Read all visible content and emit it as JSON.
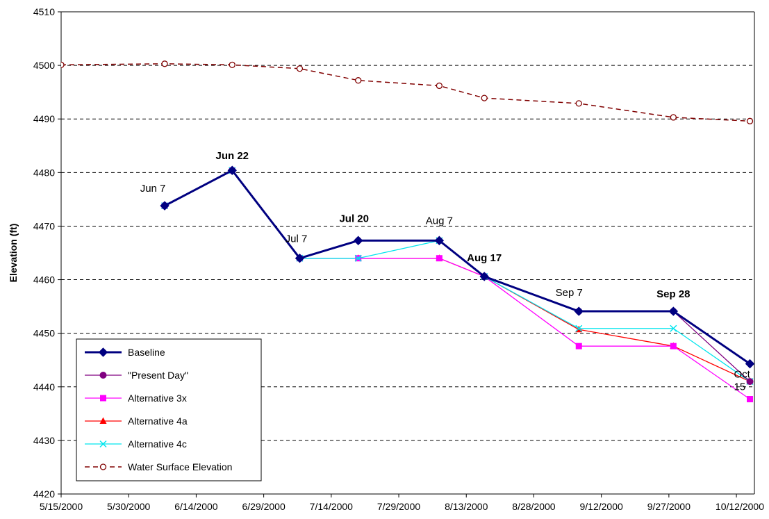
{
  "chart_data": {
    "type": "line",
    "title": "",
    "xlabel": "",
    "ylabel": "Elevation (ft)",
    "ylim": [
      4420,
      4510
    ],
    "yticks": [
      4420,
      4430,
      4440,
      4450,
      4460,
      4470,
      4480,
      4490,
      4500,
      4510
    ],
    "xlim": [
      "2000-05-15",
      "2000-10-16"
    ],
    "xticks": [
      "2000-05-15",
      "2000-05-30",
      "2000-06-14",
      "2000-06-29",
      "2000-07-14",
      "2000-07-29",
      "2000-08-13",
      "2000-08-28",
      "2000-09-12",
      "2000-09-27",
      "2000-10-12"
    ],
    "xtick_labels": [
      "5/15/2000",
      "5/30/2000",
      "6/14/2000",
      "6/29/2000",
      "7/14/2000",
      "7/29/2000",
      "8/13/2000",
      "8/28/2000",
      "9/12/2000",
      "9/27/2000",
      "10/12/2000"
    ],
    "grid": {
      "horizontal": true,
      "style": "dashed"
    },
    "legend": {
      "position": "bottom-left"
    },
    "series": [
      {
        "name": "Baseline",
        "color": "#000080",
        "marker": "diamond",
        "line": "solid-thick",
        "x": [
          "2000-06-07",
          "2000-06-22",
          "2000-07-07",
          "2000-07-20",
          "2000-08-07",
          "2000-08-17",
          "2000-09-07",
          "2000-09-28",
          "2000-10-15"
        ],
        "y": [
          4473.8,
          4480.4,
          4464.0,
          4467.3,
          4467.3,
          4460.6,
          4454.1,
          4454.1,
          4444.3
        ]
      },
      {
        "name": "\"Present Day\"",
        "color": "#800080",
        "marker": "circle",
        "line": "solid",
        "x": [
          "2000-06-07",
          "2000-06-22",
          "2000-07-07",
          "2000-07-20",
          "2000-08-07",
          "2000-08-17",
          "2000-09-07",
          "2000-09-28",
          "2000-10-15"
        ],
        "y": [
          4473.8,
          4480.4,
          4464.0,
          4467.3,
          4467.3,
          4460.6,
          4454.1,
          4454.1,
          4441.0
        ]
      },
      {
        "name": "Alternative 3x",
        "color": "#ff00ff",
        "marker": "square",
        "line": "solid",
        "x": [
          "2000-06-07",
          "2000-06-22",
          "2000-07-07",
          "2000-07-20",
          "2000-08-07",
          "2000-08-17",
          "2000-09-07",
          "2000-09-28",
          "2000-10-15"
        ],
        "y": [
          4473.8,
          4480.4,
          4464.0,
          4464.0,
          4464.0,
          4460.6,
          4447.6,
          4447.6,
          4437.7
        ]
      },
      {
        "name": "Alternative 4a",
        "color": "#ff0000",
        "marker": "triangle",
        "line": "solid",
        "x": [
          "2000-06-07",
          "2000-06-22",
          "2000-07-07",
          "2000-07-20",
          "2000-08-07",
          "2000-08-17",
          "2000-09-07",
          "2000-09-28",
          "2000-10-15"
        ],
        "y": [
          4473.8,
          4480.4,
          4464.0,
          4464.0,
          4464.0,
          4460.6,
          4450.7,
          4447.6,
          4441.0
        ]
      },
      {
        "name": "Alternative 4c",
        "color": "#00e5ee",
        "marker": "x",
        "line": "solid",
        "x": [
          "2000-06-07",
          "2000-06-22",
          "2000-07-07",
          "2000-07-20",
          "2000-08-07",
          "2000-08-17",
          "2000-09-07",
          "2000-09-28",
          "2000-10-15"
        ],
        "y": [
          4473.8,
          4480.4,
          4464.0,
          4464.0,
          4467.3,
          4460.6,
          4450.9,
          4450.9,
          4441.0
        ]
      },
      {
        "name": "Water Surface Elevation",
        "color": "#800000",
        "marker": "open-circle",
        "line": "dashed",
        "x": [
          "2000-05-15",
          "2000-06-07",
          "2000-06-22",
          "2000-07-07",
          "2000-07-20",
          "2000-08-07",
          "2000-08-17",
          "2000-09-07",
          "2000-09-28",
          "2000-10-15"
        ],
        "y": [
          4500.1,
          4500.3,
          4500.1,
          4499.4,
          4497.2,
          4496.2,
          4493.9,
          4492.9,
          4490.3,
          4489.6
        ]
      }
    ],
    "annotations": [
      {
        "text": "Jun 7",
        "x": "2000-06-07",
        "y": 4473.8,
        "bold": false
      },
      {
        "text": "Jun 22",
        "x": "2000-06-22",
        "y": 4480.4,
        "bold": true
      },
      {
        "text": "Jul 7",
        "x": "2000-07-07",
        "y": 4464.0,
        "bold": false
      },
      {
        "text": "Jul 20",
        "x": "2000-07-20",
        "y": 4467.3,
        "bold": true
      },
      {
        "text": "Aug 7",
        "x": "2000-08-07",
        "y": 4467.3,
        "bold": false
      },
      {
        "text": "Aug 17",
        "x": "2000-08-17",
        "y": 4460.6,
        "bold": true
      },
      {
        "text": "Sep 7",
        "x": "2000-09-07",
        "y": 4454.1,
        "bold": false
      },
      {
        "text": "Sep 28",
        "x": "2000-09-28",
        "y": 4454.1,
        "bold": true
      },
      {
        "text": "Oct 15",
        "x": "2000-10-15",
        "y": 4437.7,
        "bold": false
      }
    ]
  }
}
